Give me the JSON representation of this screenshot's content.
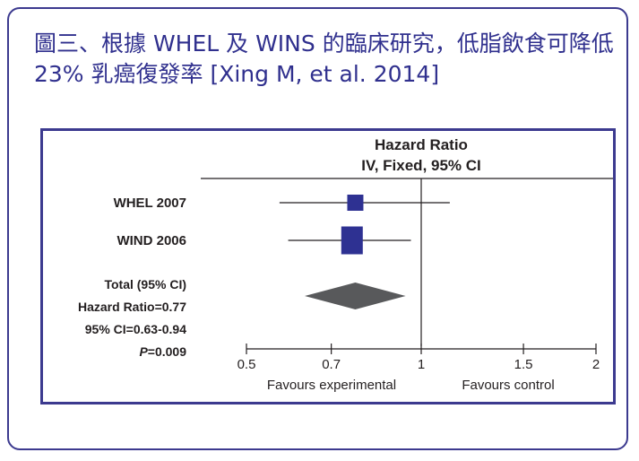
{
  "title": "圖三、根據 WHEL 及 WINS 的臨床研究，低脂飲食可降低 23% 乳癌復發率 [Xing M, et al. 2014]",
  "colors": {
    "border": "#3c3a8f",
    "title": "#30308e",
    "square": "#2e3192",
    "diamond": "#58595b",
    "line": "#231f20"
  },
  "chart_data": {
    "type": "forest",
    "header": [
      "Hazard Ratio",
      "IV, Fixed, 95% CI"
    ],
    "studies": [
      {
        "name": "WHEL 2007",
        "hr": 0.77,
        "ci": [
          0.57,
          1.12
        ]
      },
      {
        "name": "WIND 2006",
        "hr": 0.76,
        "ci": [
          0.59,
          0.96
        ]
      }
    ],
    "total": {
      "label": "Total (95% CI)",
      "hr_label": "Hazard Ratio=0.77",
      "ci_label": "95% CI=0.63-0.94",
      "p_italic": "P",
      "p_rest": "=0.009",
      "hr": 0.77,
      "ci": [
        0.63,
        0.94
      ]
    },
    "x_ticks": [
      "0.5",
      "0.7",
      "1",
      "1.5",
      "2"
    ],
    "x_scale": "log",
    "xlim": [
      0.5,
      2
    ],
    "reference_line": 1,
    "favours_left": "Favours experimental",
    "favours_right": "Favours control"
  }
}
